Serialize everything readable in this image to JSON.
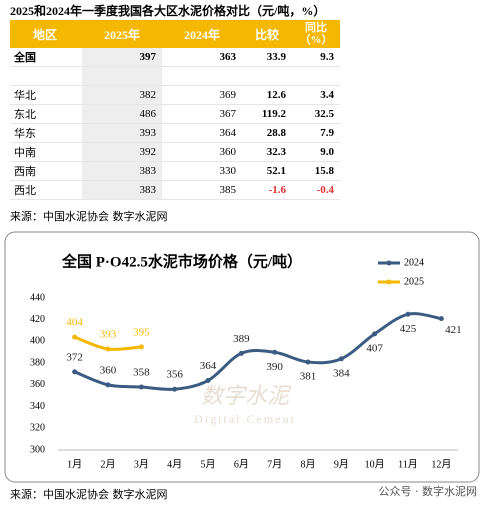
{
  "table": {
    "title": "2025和2024年一季度我国各大区水泥价格对比（元/吨，%）",
    "header": [
      "地区",
      "2025年",
      "2024年",
      "比较",
      "同比（%）"
    ],
    "rows": [
      [
        "全国",
        "397",
        "363",
        "33.9",
        "9.3"
      ],
      [
        "",
        "",
        "",
        "",
        ""
      ],
      [
        "华北",
        "382",
        "369",
        "12.6",
        "3.4"
      ],
      [
        "东北",
        "486",
        "367",
        "119.2",
        "32.5"
      ],
      [
        "华东",
        "393",
        "364",
        "28.8",
        "7.9"
      ],
      [
        "中南",
        "392",
        "360",
        "32.3",
        "9.0"
      ],
      [
        "西南",
        "383",
        "330",
        "52.1",
        "15.8"
      ],
      [
        "西北",
        "383",
        "385",
        "-1.6",
        "-0.4"
      ]
    ],
    "source": "来源：中国水泥协会  数字水泥网"
  },
  "chart_data": {
    "type": "line",
    "title": "全国 P·O42.5水泥市场价格（元/吨）",
    "categories": [
      "1月",
      "2月",
      "3月",
      "4月",
      "5月",
      "6月",
      "7月",
      "8月",
      "9月",
      "10月",
      "11月",
      "12月"
    ],
    "series": [
      {
        "name": "2024",
        "color": "#3b5b82",
        "values": [
          372,
          360,
          358,
          356,
          364,
          389,
          390,
          381,
          384,
          407,
          425,
          421
        ]
      },
      {
        "name": "2025",
        "color": "#f5b800",
        "values": [
          404,
          393,
          395,
          null,
          null,
          null,
          null,
          null,
          null,
          null,
          null,
          null
        ]
      }
    ],
    "ylim": [
      300,
      440
    ],
    "yticks": [
      300,
      320,
      340,
      360,
      380,
      400,
      420,
      440
    ],
    "legend": "top-right",
    "grid": false,
    "watermark": [
      "数字水泥",
      "Digital Cement"
    ],
    "source": "来源：中国水泥协会 数字水泥网"
  },
  "footer": "公众号 · 数字水泥网"
}
